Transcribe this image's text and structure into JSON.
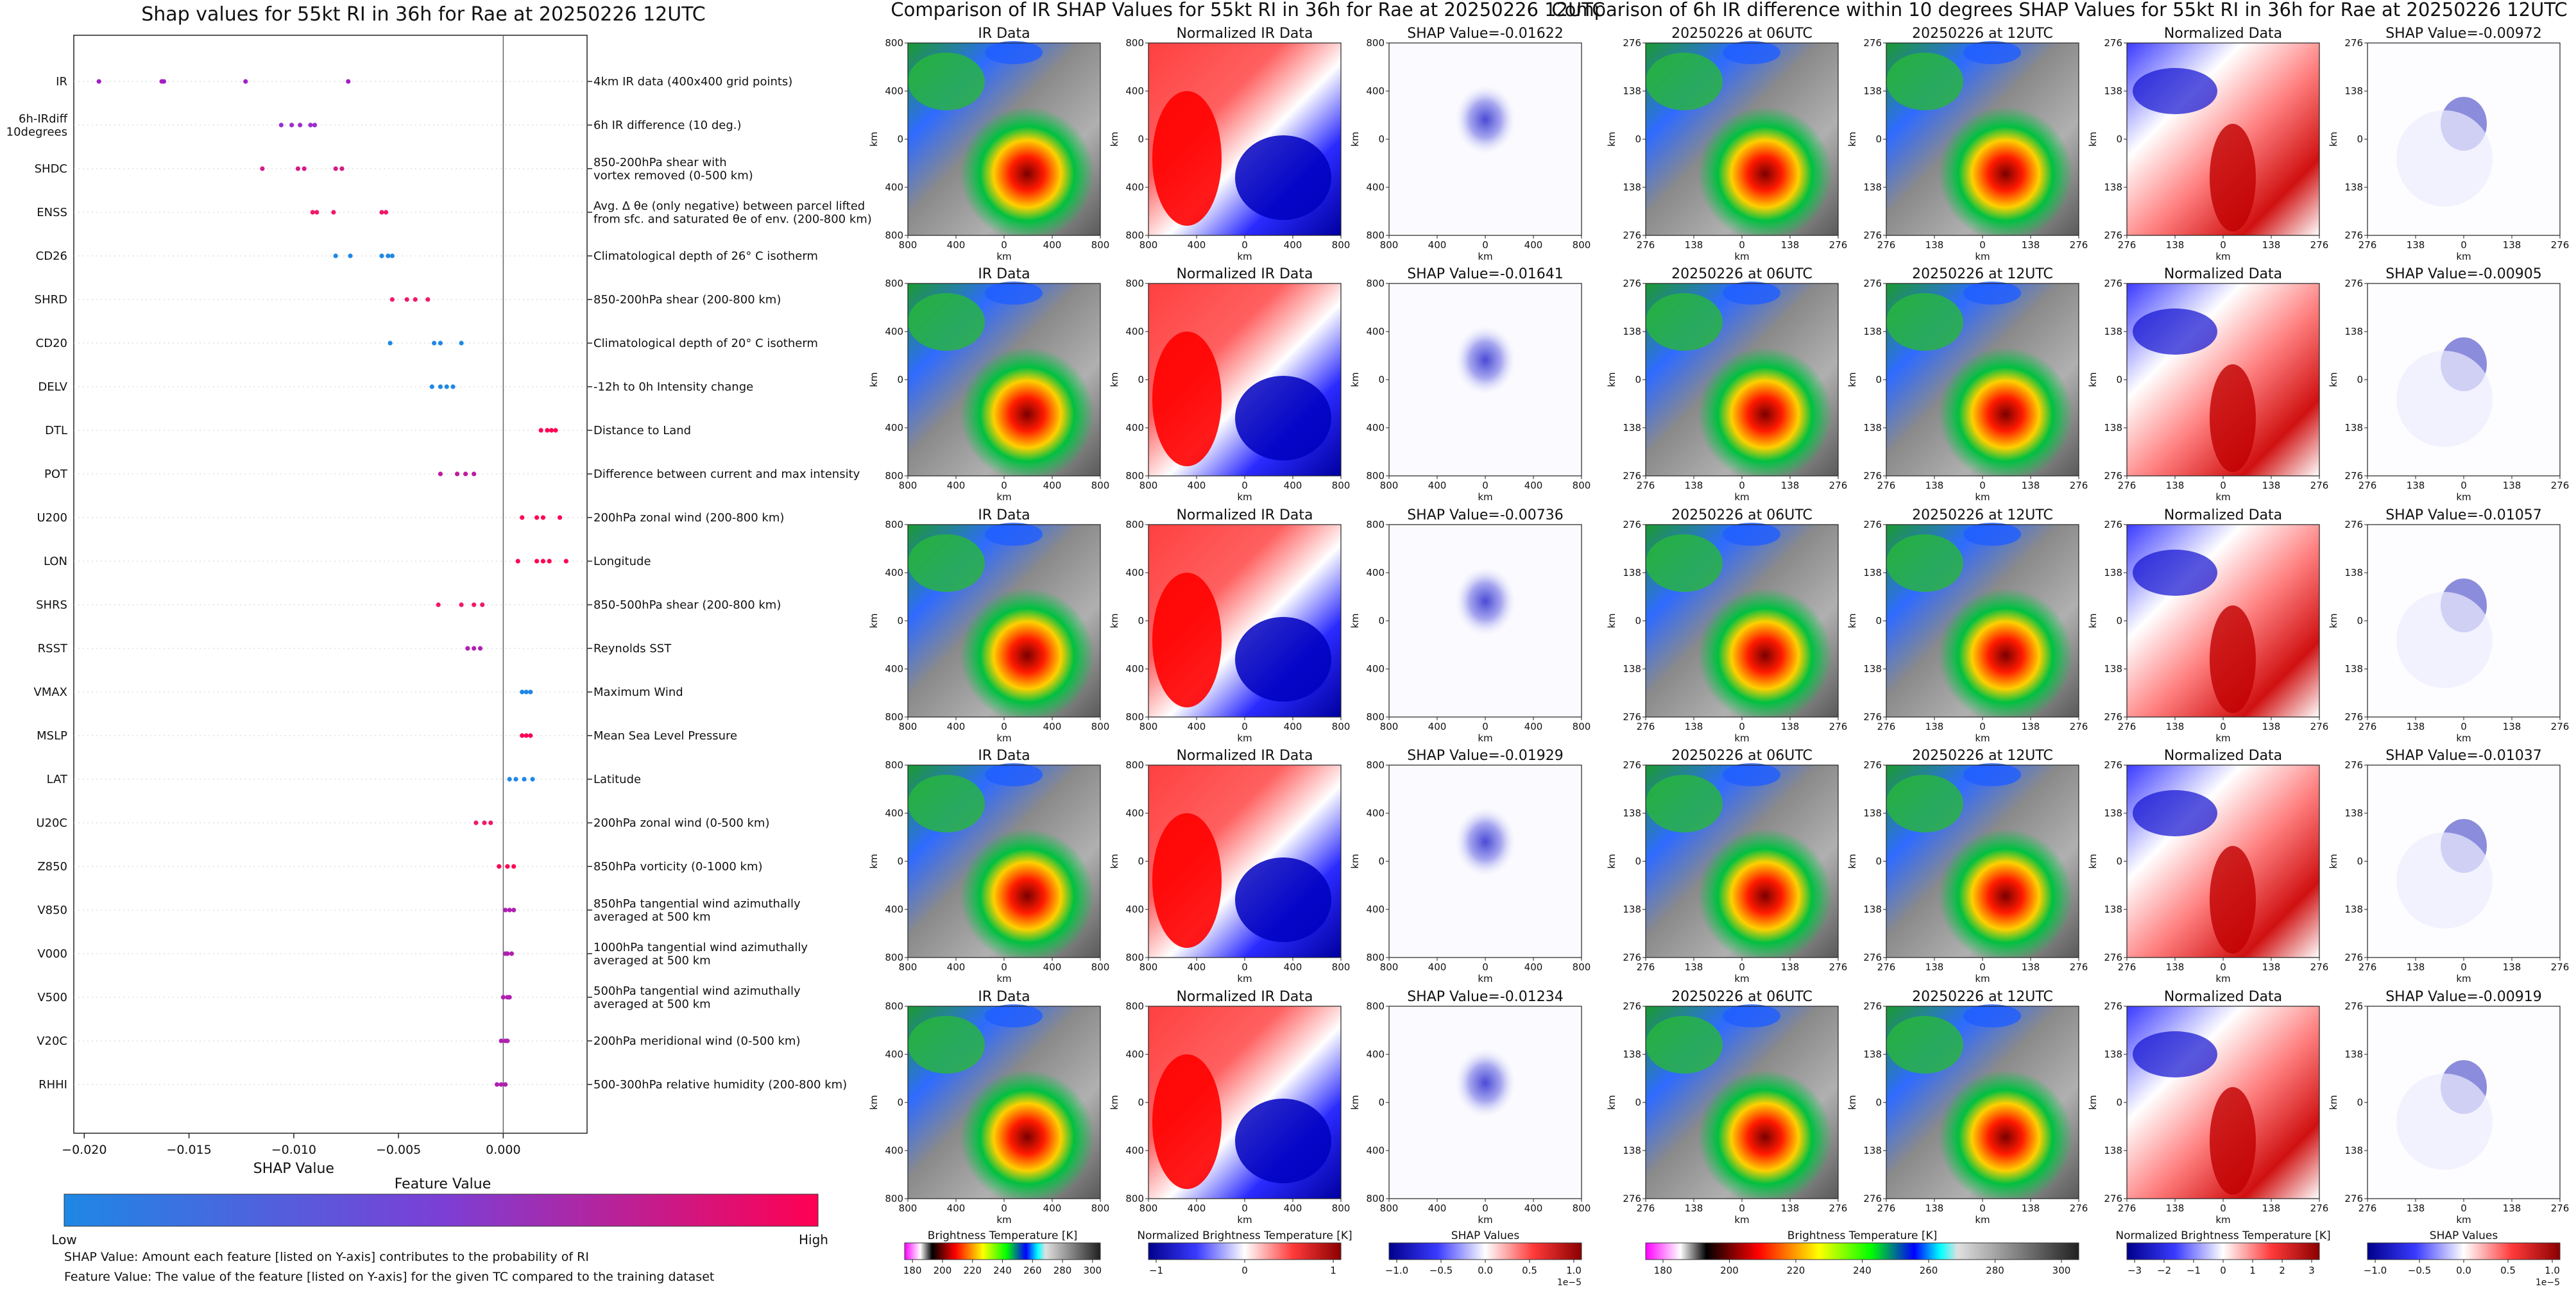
{
  "left_panel": {
    "title": "Shap values for 55kt RI in 36h for Rae at 20250226 12UTC",
    "xlabel": "SHAP Value",
    "xticks": [
      "−0.020",
      "−0.015",
      "−0.010",
      "−0.005",
      "0.000"
    ],
    "colorbar": {
      "title": "Feature Value",
      "low_label": "Low",
      "high_label": "High",
      "colors": [
        "#1e88e5",
        "#7b3fd6",
        "#ff0052"
      ]
    },
    "notes": [
      "SHAP Value: Amount each feature [listed on Y-axis] contributes to the probability of RI",
      "Feature Value: The value of the feature [listed on Y-axis] for the given TC compared to the training dataset"
    ]
  },
  "middle_panel": {
    "title": "Comparison of IR SHAP Values for 55kt RI in 36h for Rae at 20250226 12UTC",
    "col_titles": [
      "IR Data",
      "Normalized IR Data"
    ],
    "shap_titles": [
      "SHAP Value=-0.01622",
      "SHAP Value=-0.01641",
      "SHAP Value=-0.00736",
      "SHAP Value=-0.01929",
      "SHAP Value=-0.01234"
    ],
    "tick_labels": [
      "800",
      "400",
      "0",
      "400",
      "800"
    ],
    "axis_label": "km",
    "colorbars": [
      {
        "label": "Brightness Temperature [K]",
        "ticks": [
          "180",
          "200",
          "220",
          "240",
          "260",
          "280",
          "300"
        ]
      },
      {
        "label": "Normalized Brightness Temperature [K]",
        "ticks": [
          "−1",
          "0",
          "1"
        ]
      },
      {
        "label": "SHAP Values",
        "ticks": [
          "−1.0",
          "−0.5",
          "0.0",
          "0.5",
          "1.0"
        ],
        "exponent": "1e−5"
      }
    ]
  },
  "right_panel": {
    "title": "Comparison of 6h IR difference within 10 degrees SHAP Values for 55kt RI in 36h for Rae at 20250226 12UTC",
    "col_titles": [
      "20250226 at 06UTC",
      "20250226 at 12UTC",
      "Normalized Data"
    ],
    "shap_titles": [
      "SHAP Value=-0.00972",
      "SHAP Value=-0.00905",
      "SHAP Value=-0.01057",
      "SHAP Value=-0.01037",
      "SHAP Value=-0.00919"
    ],
    "tick_labels": [
      "276",
      "138",
      "0",
      "138",
      "276"
    ],
    "axis_label": "km",
    "colorbars": [
      {
        "label": "Brightness Temperature [K]",
        "ticks": [
          "180",
          "200",
          "220",
          "240",
          "260",
          "280",
          "300"
        ]
      },
      {
        "label": "Normalized Brightness Temperature [K]",
        "ticks": [
          "−3",
          "−2",
          "−1",
          "0",
          "1",
          "2",
          "3"
        ]
      },
      {
        "label": "SHAP Values",
        "ticks": [
          "−1.0",
          "−0.5",
          "0.0",
          "0.5",
          "1.0"
        ],
        "exponent": "1e−5"
      }
    ]
  },
  "chart_data": {
    "type": "scatter",
    "title": "Shap values for 55kt RI in 36h for Rae at 20250226 12UTC",
    "xlabel": "SHAP Value",
    "xlim": [
      -0.0205,
      0.004
    ],
    "features": [
      {
        "code": "IR",
        "desc": "4km IR data (400x400 grid points)",
        "values": [
          -0.0193,
          -0.0163,
          -0.0162,
          -0.0123,
          -0.0074
        ],
        "colors": [
          "#a31fc2",
          "#a31fc2",
          "#a31fc2",
          "#a31fc2",
          "#a31fc2"
        ]
      },
      {
        "code": "6h-IRdiff\n10degrees",
        "desc": "6h IR difference (10 deg.)",
        "values": [
          -0.0106,
          -0.0101,
          -0.0097,
          -0.0092,
          -0.009
        ],
        "colors": [
          "#9b2fd0",
          "#9b2fd0",
          "#9b2fd0",
          "#9b2fd0",
          "#9b2fd0"
        ]
      },
      {
        "code": "SHDC",
        "desc": "850-200hPa shear with\nvortex removed (0-500 km)",
        "values": [
          -0.0115,
          -0.0098,
          -0.0095,
          -0.008,
          -0.0077
        ],
        "colors": [
          "#d51a8a",
          "#d51a8a",
          "#d51a8a",
          "#d51a8a",
          "#d51a8a"
        ]
      },
      {
        "code": "ENSS",
        "desc": "Avg. Δ θe (only negative) between parcel lifted\nfrom sfc. and saturated θe of env. (200-800 km)",
        "values": [
          -0.0091,
          -0.0089,
          -0.0081,
          -0.0058,
          -0.0056
        ],
        "colors": [
          "#f0186a",
          "#f0186a",
          "#f0186a",
          "#f0186a",
          "#f0186a"
        ]
      },
      {
        "code": "CD26",
        "desc": "Climatological depth of 26° C isotherm",
        "values": [
          -0.008,
          -0.0073,
          -0.0058,
          -0.0055,
          -0.0053
        ],
        "colors": [
          "#1e88e5",
          "#1e88e5",
          "#1e88e5",
          "#1e88e5",
          "#1e88e5"
        ]
      },
      {
        "code": "SHRD",
        "desc": "850-200hPa shear (200-800 km)",
        "values": [
          -0.0053,
          -0.0046,
          -0.0042,
          -0.0036
        ],
        "colors": [
          "#f0186a",
          "#f0186a",
          "#f0186a",
          "#f0186a"
        ]
      },
      {
        "code": "CD20",
        "desc": "Climatological depth of 20° C isotherm",
        "values": [
          -0.0054,
          -0.0033,
          -0.003,
          -0.002
        ],
        "colors": [
          "#1e88e5",
          "#1e88e5",
          "#1e88e5",
          "#1e88e5"
        ]
      },
      {
        "code": "DELV",
        "desc": "-12h to 0h Intensity change",
        "values": [
          -0.0034,
          -0.003,
          -0.0027,
          -0.0024
        ],
        "colors": [
          "#1e88e5",
          "#1e88e5",
          "#1e88e5",
          "#1e88e5"
        ]
      },
      {
        "code": "DTL",
        "desc": "Distance to Land",
        "values": [
          0.0018,
          0.0021,
          0.0023,
          0.0025
        ],
        "colors": [
          "#ff0052",
          "#ff0052",
          "#ff0052",
          "#ff0052"
        ]
      },
      {
        "code": "POT",
        "desc": "Difference between current and max intensity",
        "values": [
          -0.003,
          -0.0022,
          -0.0018,
          -0.0014
        ],
        "colors": [
          "#c01aa0",
          "#c01aa0",
          "#c01aa0",
          "#c01aa0"
        ]
      },
      {
        "code": "U200",
        "desc": "200hPa zonal wind (200-800 km)",
        "values": [
          0.0009,
          0.0016,
          0.0019,
          0.0027
        ],
        "colors": [
          "#ff0052",
          "#ff0052",
          "#ff0052",
          "#ff0052"
        ]
      },
      {
        "code": "LON",
        "desc": "Longitude",
        "values": [
          0.0007,
          0.0016,
          0.0019,
          0.0022,
          0.003
        ],
        "colors": [
          "#ff0052",
          "#ff0052",
          "#ff0052",
          "#ff0052",
          "#ff0052"
        ]
      },
      {
        "code": "SHRS",
        "desc": "850-500hPa shear (200-800 km)",
        "values": [
          -0.0031,
          -0.002,
          -0.0014,
          -0.001
        ],
        "colors": [
          "#f0186a",
          "#f0186a",
          "#f0186a",
          "#f0186a"
        ]
      },
      {
        "code": "RSST",
        "desc": "Reynolds SST",
        "values": [
          -0.0017,
          -0.0014,
          -0.0011
        ],
        "colors": [
          "#b020b0",
          "#b020b0",
          "#b020b0"
        ]
      },
      {
        "code": "VMAX",
        "desc": "Maximum Wind",
        "values": [
          0.0009,
          0.0011,
          0.0013
        ],
        "colors": [
          "#1e88e5",
          "#1e88e5",
          "#1e88e5"
        ]
      },
      {
        "code": "MSLP",
        "desc": "Mean Sea Level Pressure",
        "values": [
          0.0009,
          0.0011,
          0.0013
        ],
        "colors": [
          "#ff0052",
          "#ff0052",
          "#ff0052"
        ]
      },
      {
        "code": "LAT",
        "desc": "Latitude",
        "values": [
          0.0003,
          0.0006,
          0.001,
          0.0014
        ],
        "colors": [
          "#1e88e5",
          "#1e88e5",
          "#1e88e5",
          "#1e88e5"
        ]
      },
      {
        "code": "U20C",
        "desc": "200hPa zonal wind (0-500 km)",
        "values": [
          -0.0013,
          -0.0009,
          -0.0006
        ],
        "colors": [
          "#f0186a",
          "#f0186a",
          "#f0186a"
        ]
      },
      {
        "code": "Z850",
        "desc": "850hPa vorticity (0-1000 km)",
        "values": [
          -0.0002,
          0.0002,
          0.0005
        ],
        "colors": [
          "#ff0052",
          "#ff0052",
          "#ff0052"
        ]
      },
      {
        "code": "V850",
        "desc": "850hPa tangential wind azimuthally\naveraged at 500 km",
        "values": [
          0.0001,
          0.0003,
          0.0005
        ],
        "colors": [
          "#b020b0",
          "#b020b0",
          "#b020b0"
        ]
      },
      {
        "code": "V000",
        "desc": "1000hPa tangential wind azimuthally\naveraged at 500 km",
        "values": [
          0.0001,
          0.0002,
          0.0004
        ],
        "colors": [
          "#b020b0",
          "#b020b0",
          "#b020b0"
        ]
      },
      {
        "code": "V500",
        "desc": "500hPa tangential wind azimuthally\naveraged at 500 km",
        "values": [
          0.0,
          0.0002,
          0.0003
        ],
        "colors": [
          "#b020b0",
          "#b020b0",
          "#b020b0"
        ]
      },
      {
        "code": "V20C",
        "desc": "200hPa meridional wind (0-500 km)",
        "values": [
          -0.0001,
          0.0001,
          0.0002
        ],
        "colors": [
          "#b020b0",
          "#b020b0",
          "#b020b0"
        ]
      },
      {
        "code": "RHHI",
        "desc": "500-300hPa relative humidity (200-800 km)",
        "values": [
          -0.0003,
          -0.0001,
          0.0001
        ],
        "colors": [
          "#b020b0",
          "#b020b0",
          "#b020b0"
        ]
      }
    ]
  }
}
